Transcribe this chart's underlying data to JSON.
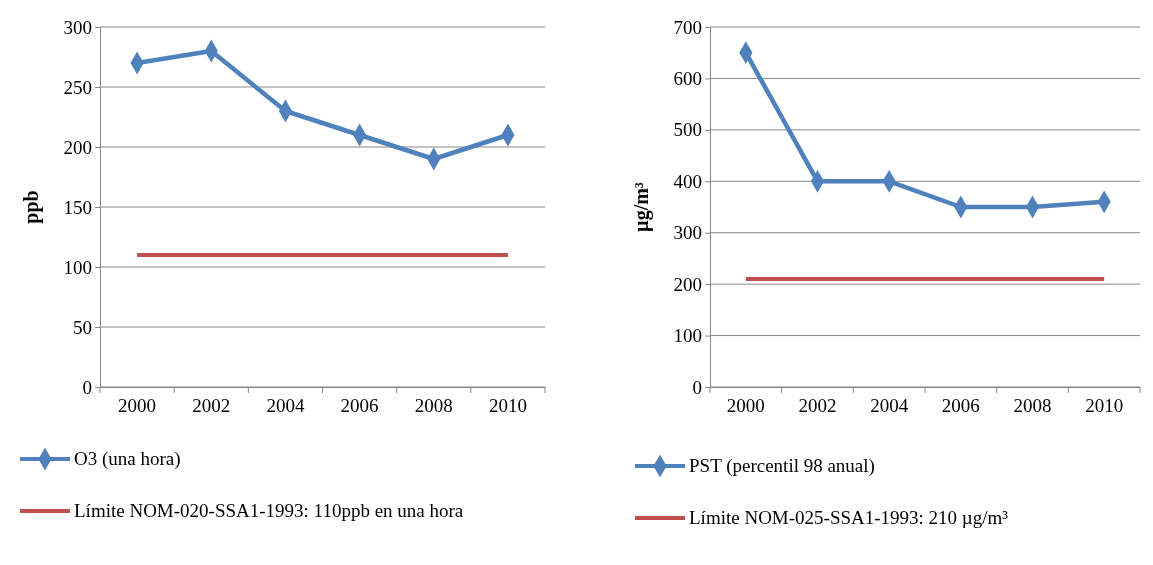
{
  "chart_data": [
    {
      "type": "line",
      "ylabel": "ppb",
      "categories": [
        "2000",
        "2002",
        "2004",
        "2006",
        "2008",
        "2010"
      ],
      "ylim": [
        0,
        300
      ],
      "yticks": [
        0,
        50,
        100,
        150,
        200,
        250,
        300
      ],
      "grid": "y",
      "legend": "bottom",
      "series": [
        {
          "name": "O3 (una hora)",
          "color": "#4f81bd",
          "marker": "diamond",
          "values": [
            270,
            280,
            230,
            210,
            190,
            210
          ]
        },
        {
          "name": "Límite NOM-020-SSA1-1993: 110ppb en una hora",
          "color": "#c0504d",
          "marker": "none",
          "values": [
            110,
            110,
            110,
            110,
            110,
            110
          ]
        }
      ]
    },
    {
      "type": "line",
      "ylabel": "µg/m³",
      "categories": [
        "2000",
        "2002",
        "2004",
        "2006",
        "2008",
        "2010"
      ],
      "ylim": [
        0,
        700
      ],
      "yticks": [
        0,
        100,
        200,
        300,
        400,
        500,
        600,
        700
      ],
      "grid": "y",
      "legend": "bottom",
      "series": [
        {
          "name": "PST (percentil 98 anual)",
          "color": "#4f81bd",
          "marker": "diamond",
          "values": [
            650,
            400,
            400,
            350,
            350,
            360
          ]
        },
        {
          "name": "Límite NOM-025-SSA1-1993: 210 µg/m³",
          "color": "#c0504d",
          "marker": "none",
          "values": [
            210,
            210,
            210,
            210,
            210,
            210
          ]
        }
      ]
    }
  ]
}
